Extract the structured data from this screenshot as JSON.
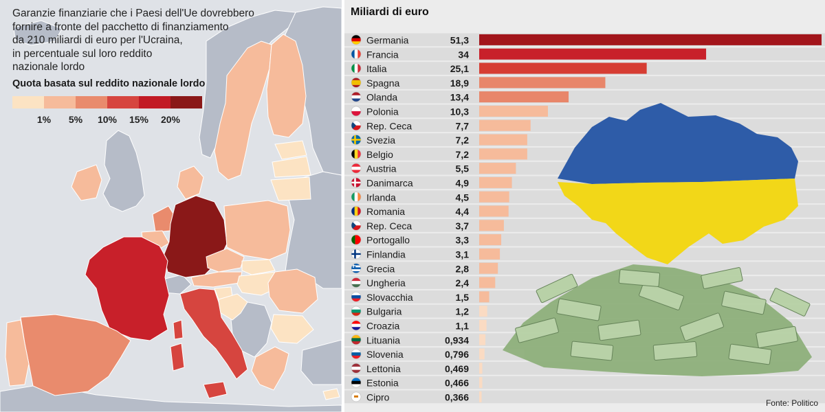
{
  "map": {
    "title_lines": [
      "Garanzie finanziarie che i Paesi dell'Ue dovrebbero",
      "fornire a fronte del pacchetto di finanziamento",
      "da 210 miliardi di euro per l'Ucraina,",
      "in percentuale sul loro reddito",
      "nazionale lordo"
    ],
    "subtitle": "Quota basata sul reddito nazionale lordo",
    "legend": {
      "colors": [
        "#fce3c3",
        "#f6bb9b",
        "#e98b6d",
        "#d6453f",
        "#c21a25",
        "#8a1818"
      ],
      "labels": [
        "1%",
        "5%",
        "10%",
        "15%",
        "20%"
      ]
    },
    "sea_color": "#dfe2e7",
    "non_eu_color": "#b6bcc8"
  },
  "chart": {
    "title": "Miliardi di euro",
    "source": "Fonte: Politico",
    "bar_light_color": "#fadbc3",
    "row_band_color": "#dcdcdc"
  },
  "chart_data": {
    "type": "bar",
    "orientation": "horizontal",
    "title": "Miliardi di euro",
    "categories": [
      "Germania",
      "Francia",
      "Italia",
      "Spagna",
      "Olanda",
      "Polonia",
      "Rep. Ceca",
      "Svezia",
      "Belgio",
      "Austria",
      "Danimarca",
      "Irlanda",
      "Romania",
      "Rep. Ceca",
      "Portogallo",
      "Finlandia",
      "Grecia",
      "Ungheria",
      "Slovacchia",
      "Bulgaria",
      "Croazia",
      "Lituania",
      "Slovenia",
      "Lettonia",
      "Estonia",
      "Cipro"
    ],
    "values": [
      51.3,
      34,
      25.1,
      18.9,
      13.4,
      10.3,
      7.7,
      7.2,
      7.2,
      5.5,
      4.9,
      4.5,
      4.4,
      3.7,
      3.3,
      3.1,
      2.8,
      2.4,
      1.5,
      1.2,
      1.1,
      0.934,
      0.796,
      0.469,
      0.466,
      0.366
    ],
    "labels": [
      "51,3",
      "34",
      "25,1",
      "18,9",
      "13,4",
      "10,3",
      "7,7",
      "7,2",
      "7,2",
      "5,5",
      "4,9",
      "4,5",
      "4,4",
      "3,7",
      "3,3",
      "3,1",
      "2,8",
      "2,4",
      "1,5",
      "1,2",
      "1,1",
      "0,934",
      "0,796",
      "0,469",
      "0,466",
      "0,366"
    ],
    "bar_colors": [
      "#a2151b",
      "#c8202a",
      "#d63d33",
      "#e8866a",
      "#e8866a",
      "#f6bb9b",
      "#f6bb9b",
      "#f6bb9b",
      "#f6bb9b",
      "#f6bb9b",
      "#f6bb9b",
      "#f6bb9b",
      "#f6bb9b",
      "#f6bb9b",
      "#f6bb9b",
      "#f6bb9b",
      "#f6bb9b",
      "#f6bb9b",
      "#f6bb9b",
      "#fadbc3",
      "#fadbc3",
      "#fadbc3",
      "#fadbc3",
      "#fadbc3",
      "#fadbc3",
      "#fadbc3"
    ],
    "flags": [
      "germany-flag-icon",
      "france-flag-icon",
      "italy-flag-icon",
      "spain-flag-icon",
      "netherlands-flag-icon",
      "poland-flag-icon",
      "czech-flag-icon",
      "sweden-flag-icon",
      "belgium-flag-icon",
      "austria-flag-icon",
      "denmark-flag-icon",
      "ireland-flag-icon",
      "romania-flag-icon",
      "czech-flag-icon",
      "portugal-flag-icon",
      "finland-flag-icon",
      "greece-flag-icon",
      "hungary-flag-icon",
      "slovakia-flag-icon",
      "bulgaria-flag-icon",
      "croatia-flag-icon",
      "lithuania-flag-icon",
      "slovenia-flag-icon",
      "latvia-flag-icon",
      "estonia-flag-icon",
      "cyprus-flag-icon"
    ],
    "xlim": [
      0,
      51.3
    ],
    "grid": false,
    "legend": "none"
  }
}
